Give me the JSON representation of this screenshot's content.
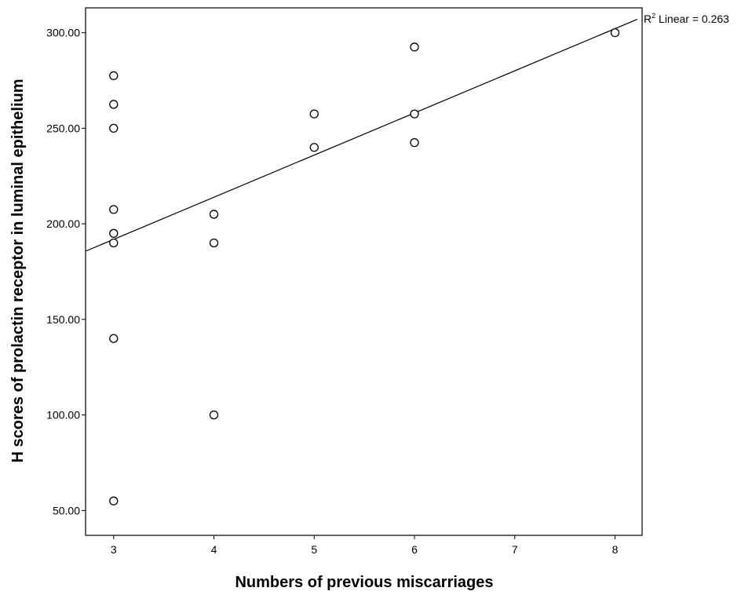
{
  "chart_data": {
    "type": "scatter",
    "xlabel": "Numbers of previous miscarriages",
    "ylabel": "H scores of prolactin receptor in luminal epithelium",
    "xlim": [
      2.72,
      8.27
    ],
    "ylim": [
      37,
      313
    ],
    "x_ticks": [
      3,
      4,
      5,
      6,
      7,
      8
    ],
    "y_ticks": [
      50,
      100,
      150,
      200,
      250,
      300
    ],
    "x_tick_labels": [
      "3",
      "4",
      "5",
      "6",
      "7",
      "8"
    ],
    "y_tick_labels": [
      "50.00",
      "100.00",
      "150.00",
      "200.00",
      "250.00",
      "300.00"
    ],
    "grid": false,
    "legend": "none",
    "points": [
      {
        "x": 3,
        "y": 277.5
      },
      {
        "x": 3,
        "y": 262.5
      },
      {
        "x": 3,
        "y": 250
      },
      {
        "x": 3,
        "y": 207.5
      },
      {
        "x": 3,
        "y": 195
      },
      {
        "x": 3,
        "y": 190
      },
      {
        "x": 3,
        "y": 140
      },
      {
        "x": 3,
        "y": 55
      },
      {
        "x": 4,
        "y": 205
      },
      {
        "x": 4,
        "y": 190
      },
      {
        "x": 4,
        "y": 100
      },
      {
        "x": 5,
        "y": 257.5
      },
      {
        "x": 5,
        "y": 240
      },
      {
        "x": 6,
        "y": 292.5
      },
      {
        "x": 6,
        "y": 257.5
      },
      {
        "x": 6,
        "y": 242.5
      },
      {
        "x": 8,
        "y": 300
      }
    ],
    "fit_line": {
      "type": "linear",
      "intercept": 125.7,
      "slope": 22.05,
      "label_r": "R",
      "label_sup": "2",
      "label_rest": " Linear = 0.263"
    }
  }
}
